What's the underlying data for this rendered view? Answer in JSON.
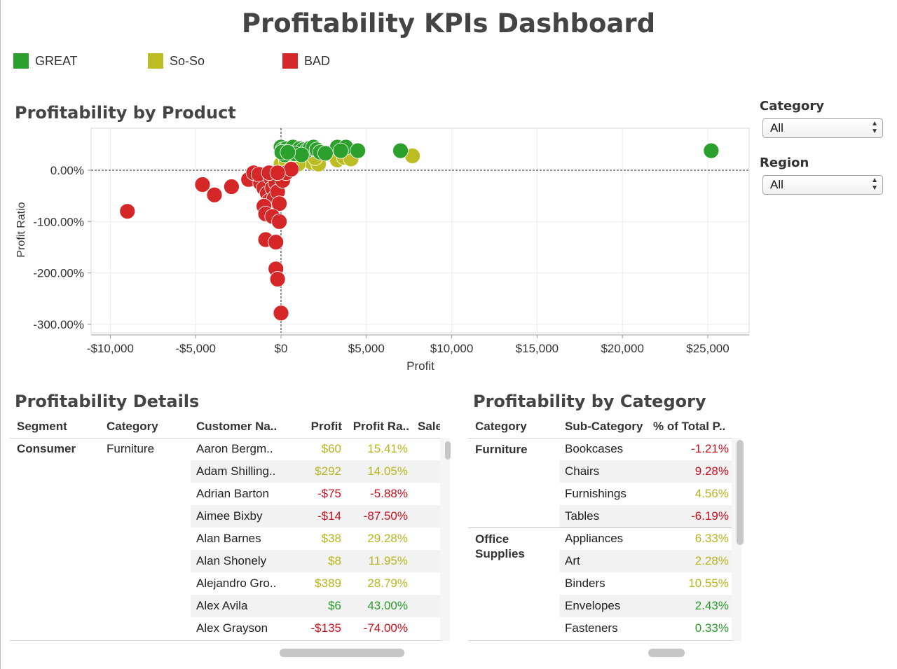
{
  "dashboard": {
    "title": "Profitability KPIs Dashboard"
  },
  "legend": [
    {
      "label": "GREAT",
      "color": "#2ca02c"
    },
    {
      "label": "So-So",
      "color": "#bcbd22"
    },
    {
      "label": "BAD",
      "color": "#d62728"
    }
  ],
  "filters": {
    "category": {
      "label": "Category",
      "value": "All"
    },
    "region": {
      "label": "Region",
      "value": "All"
    }
  },
  "scatter": {
    "title": "Profitability by Product",
    "xlabel": "Profit",
    "ylabel": "Profit Ratio",
    "x_ticks": [
      "-$10,000",
      "-$5,000",
      "$0",
      "$5,000",
      "$10,000",
      "$15,000",
      "$20,000",
      "$25,000"
    ],
    "y_ticks": [
      "0.00%",
      "-100.00%",
      "-200.00%",
      "-300.00%"
    ]
  },
  "chart_data": {
    "type": "scatter",
    "title": "Profitability by Product",
    "xlabel": "Profit",
    "ylabel": "Profit Ratio",
    "xlim": [
      -11000,
      27000
    ],
    "ylim": [
      -310,
      80
    ],
    "series": [
      {
        "name": "GREAT",
        "color": "#2ca02c",
        "points": [
          [
            0,
            45
          ],
          [
            100,
            40
          ],
          [
            300,
            42
          ],
          [
            500,
            38
          ],
          [
            700,
            45
          ],
          [
            900,
            35
          ],
          [
            1100,
            42
          ],
          [
            1300,
            40
          ],
          [
            1500,
            38
          ],
          [
            1700,
            43
          ],
          [
            1900,
            45
          ],
          [
            2100,
            40
          ],
          [
            2300,
            35
          ],
          [
            3300,
            45
          ],
          [
            3800,
            45
          ],
          [
            3500,
            38
          ],
          [
            4500,
            38
          ],
          [
            7000,
            38
          ],
          [
            25200,
            38
          ],
          [
            200,
            30
          ],
          [
            800,
            32
          ],
          [
            1200,
            30
          ],
          [
            2600,
            33
          ],
          [
            50,
            35
          ],
          [
            400,
            35
          ]
        ]
      },
      {
        "name": "So-So",
        "color": "#bcbd22",
        "points": [
          [
            0,
            12
          ],
          [
            300,
            18
          ],
          [
            600,
            22
          ],
          [
            900,
            15
          ],
          [
            1200,
            18
          ],
          [
            1500,
            22
          ],
          [
            1800,
            15
          ],
          [
            2200,
            12
          ],
          [
            3300,
            20
          ],
          [
            3700,
            25
          ],
          [
            4100,
            22
          ],
          [
            7700,
            28
          ],
          [
            1000,
            12
          ],
          [
            2000,
            24
          ]
        ]
      },
      {
        "name": "BAD",
        "color": "#d62728",
        "points": [
          [
            -9000,
            -80
          ],
          [
            -4600,
            -28
          ],
          [
            -3900,
            -48
          ],
          [
            -2900,
            -32
          ],
          [
            -1900,
            -18
          ],
          [
            -1600,
            -5
          ],
          [
            -1200,
            -25
          ],
          [
            -1300,
            -8
          ],
          [
            -1000,
            -35
          ],
          [
            -800,
            -45
          ],
          [
            -700,
            -60
          ],
          [
            -600,
            -15
          ],
          [
            -500,
            -35
          ],
          [
            -400,
            -55
          ],
          [
            -300,
            -25
          ],
          [
            -200,
            -42
          ],
          [
            -100,
            -65
          ],
          [
            0,
            -10
          ],
          [
            100,
            -20
          ],
          [
            -1000,
            -70
          ],
          [
            -900,
            -85
          ],
          [
            -500,
            -90
          ],
          [
            -100,
            -100
          ],
          [
            -900,
            -135
          ],
          [
            -300,
            -140
          ],
          [
            -300,
            -192
          ],
          [
            -200,
            -212
          ],
          [
            0,
            -278
          ],
          [
            300,
            -5
          ],
          [
            600,
            2
          ],
          [
            -700,
            -5
          ],
          [
            -200,
            -5
          ]
        ]
      }
    ]
  },
  "details": {
    "title": "Profitability Details",
    "columns": [
      "Segment",
      "Category",
      "Customer Na..",
      "Profit",
      "Profit Ra..",
      "Sale"
    ],
    "segment": "Consumer",
    "category": "Furniture",
    "rows": [
      {
        "customer": "Aaron Bergm..",
        "profit": "$60",
        "ratio": "15.41%",
        "status": "soso"
      },
      {
        "customer": "Adam Shilling..",
        "profit": "$292",
        "ratio": "14.05%",
        "status": "soso"
      },
      {
        "customer": "Adrian Barton",
        "profit": "-$75",
        "ratio": "-5.88%",
        "status": "bad"
      },
      {
        "customer": "Aimee Bixby",
        "profit": "-$14",
        "ratio": "-87.50%",
        "status": "bad"
      },
      {
        "customer": "Alan Barnes",
        "profit": "$38",
        "ratio": "29.28%",
        "status": "soso"
      },
      {
        "customer": "Alan Shonely",
        "profit": "$8",
        "ratio": "11.95%",
        "status": "soso"
      },
      {
        "customer": "Alejandro Gro..",
        "profit": "$389",
        "ratio": "28.79%",
        "status": "soso"
      },
      {
        "customer": "Alex Avila",
        "profit": "$6",
        "ratio": "43.00%",
        "status": "great"
      },
      {
        "customer": "Alex Grayson",
        "profit": "-$135",
        "ratio": "-74.00%",
        "status": "bad"
      }
    ]
  },
  "by_category": {
    "title": "Profitability by Category",
    "columns": [
      "Category",
      "Sub-Category",
      "% of Total P.."
    ],
    "groups": [
      {
        "category": "Furniture",
        "rows": [
          {
            "sub": "Bookcases",
            "pct": "-1.21%",
            "status": "bad"
          },
          {
            "sub": "Chairs",
            "pct": "9.28%",
            "status": "bad"
          },
          {
            "sub": "Furnishings",
            "pct": "4.56%",
            "status": "soso"
          },
          {
            "sub": "Tables",
            "pct": "-6.19%",
            "status": "bad"
          }
        ]
      },
      {
        "category": "Office Supplies",
        "rows": [
          {
            "sub": "Appliances",
            "pct": "6.33%",
            "status": "soso"
          },
          {
            "sub": "Art",
            "pct": "2.28%",
            "status": "soso"
          },
          {
            "sub": "Binders",
            "pct": "10.55%",
            "status": "soso"
          },
          {
            "sub": "Envelopes",
            "pct": "2.43%",
            "status": "great"
          },
          {
            "sub": "Fasteners",
            "pct": "0.33%",
            "status": "great"
          }
        ]
      }
    ]
  }
}
